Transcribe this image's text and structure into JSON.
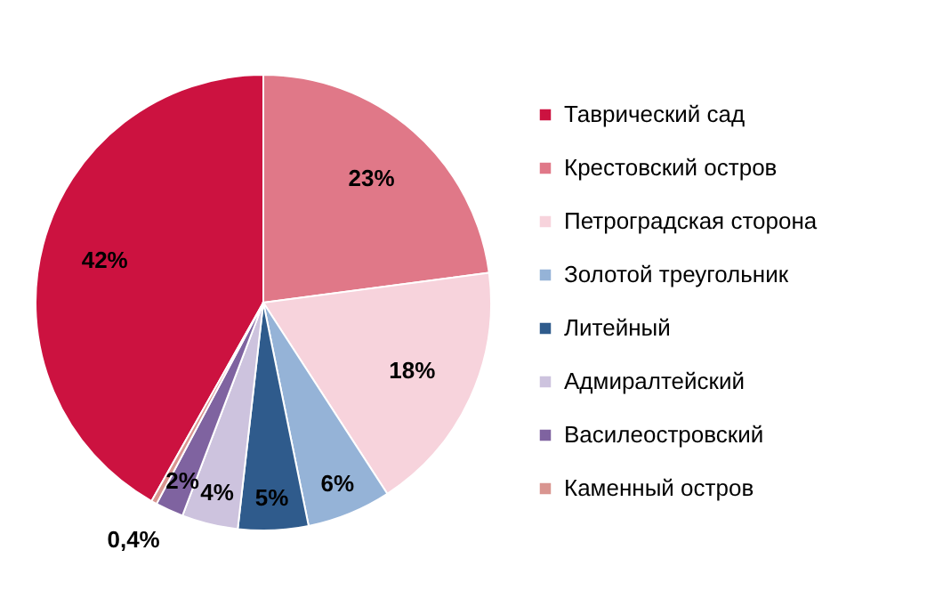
{
  "chart_data": {
    "type": "pie",
    "categories": [
      "Таврический сад",
      "Крестовский остров",
      "Петроградская сторона",
      "Золотой треугольник",
      "Литейный",
      "Адмиралтейский",
      "Василеостровский",
      "Каменный остров"
    ],
    "values": [
      42,
      23,
      18,
      6,
      5,
      4,
      2,
      0.4
    ],
    "value_labels": [
      "42%",
      "23%",
      "18%",
      "6%",
      "5%",
      "4%",
      "2%",
      "0,4%"
    ],
    "colors": [
      "#cc1240",
      "#e07888",
      "#f7d3dc",
      "#95b3d7",
      "#2f5b8c",
      "#cdc3de",
      "#7f63a0",
      "#d99590"
    ],
    "legend": "right"
  }
}
